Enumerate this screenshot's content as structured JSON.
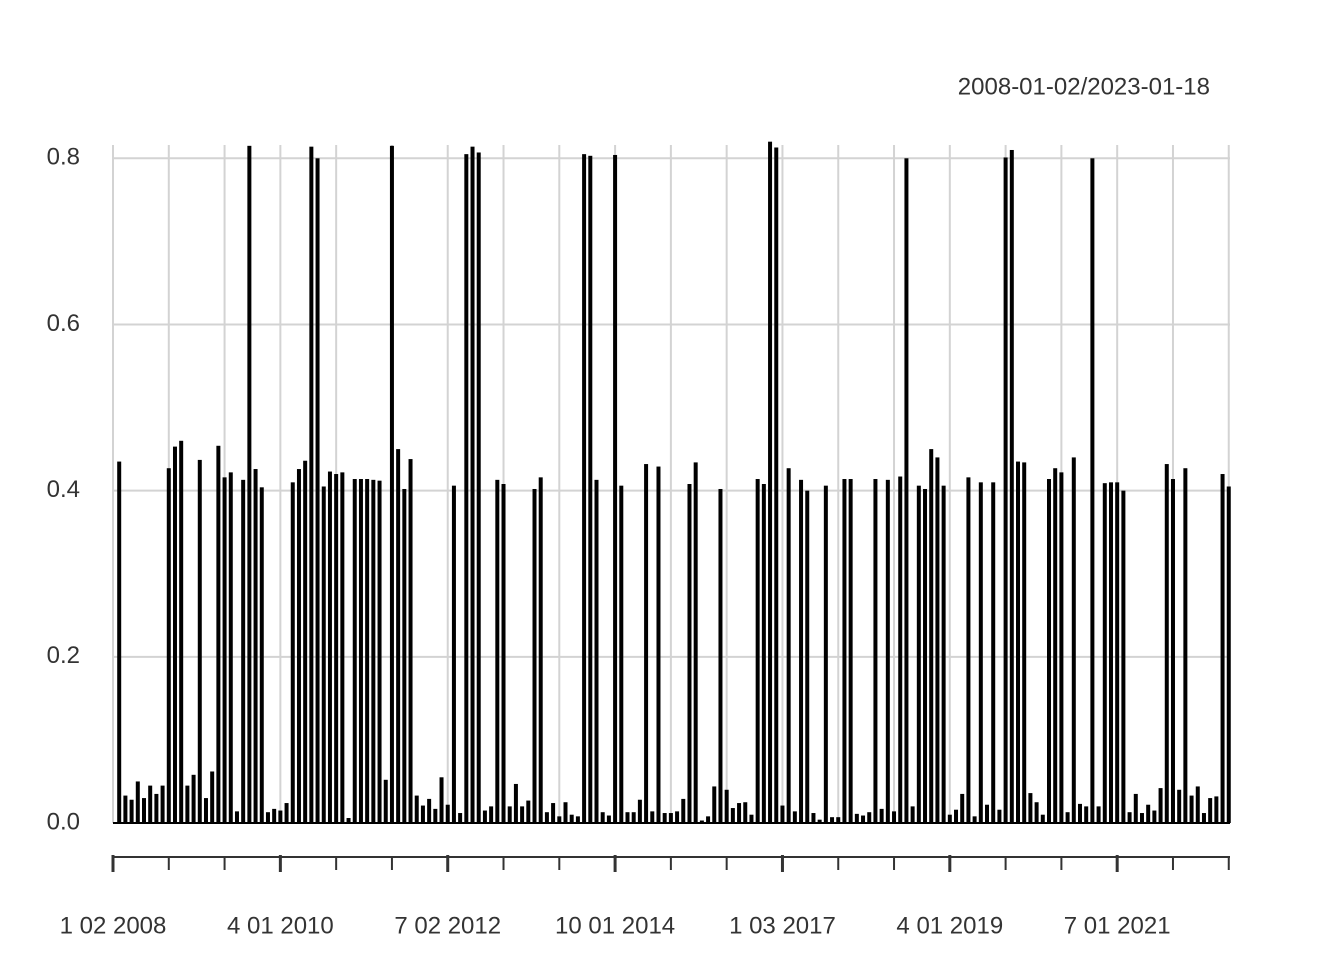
{
  "chart_data": {
    "type": "bar",
    "title": "2008-01-02/2023-01-18",
    "color": "#000000",
    "grid": true,
    "values": [
      0.435,
      0.033,
      0.028,
      0.05,
      0.03,
      0.045,
      0.035,
      0.045,
      0.427,
      0.453,
      0.46,
      0.045,
      0.058,
      0.437,
      0.03,
      0.062,
      0.454,
      0.416,
      0.422,
      0.014,
      0.413,
      0.815,
      0.426,
      0.404,
      0.013,
      0.017,
      0.015,
      0.024,
      0.41,
      0.426,
      0.436,
      0.814,
      0.8,
      0.405,
      0.423,
      0.42,
      0.422,
      0.006,
      0.414,
      0.414,
      0.414,
      0.413,
      0.412,
      0.052,
      0.815,
      0.45,
      0.402,
      0.438,
      0.033,
      0.021,
      0.029,
      0.017,
      0.055,
      0.022,
      0.406,
      0.012,
      0.805,
      0.814,
      0.807,
      0.015,
      0.02,
      0.413,
      0.408,
      0.02,
      0.047,
      0.02,
      0.027,
      0.402,
      0.416,
      0.013,
      0.024,
      0.008,
      0.025,
      0.01,
      0.008,
      0.805,
      0.803,
      0.413,
      0.013,
      0.009,
      0.804,
      0.406,
      0.013,
      0.013,
      0.028,
      0.432,
      0.014,
      0.429,
      0.012,
      0.012,
      0.014,
      0.029,
      0.408,
      0.434,
      0.003,
      0.008,
      0.044,
      0.402,
      0.04,
      0.018,
      0.024,
      0.025,
      0.01,
      0.414,
      0.408,
      0.82,
      0.813,
      0.021,
      0.427,
      0.014,
      0.413,
      0.4,
      0.012,
      0.004,
      0.406,
      0.007,
      0.007,
      0.414,
      0.414,
      0.011,
      0.009,
      0.013,
      0.414,
      0.017,
      0.413,
      0.014,
      0.417,
      0.8,
      0.02,
      0.406,
      0.402,
      0.45,
      0.44,
      0.406,
      0.01,
      0.016,
      0.035,
      0.416,
      0.008,
      0.41,
      0.022,
      0.41,
      0.016,
      0.801,
      0.81,
      0.435,
      0.434,
      0.036,
      0.025,
      0.01,
      0.414,
      0.427,
      0.422,
      0.013,
      0.44,
      0.023,
      0.02,
      0.8,
      0.02,
      0.409,
      0.41,
      0.41,
      0.4,
      0.013,
      0.035,
      0.012,
      0.022,
      0.015,
      0.042,
      0.432,
      0.414,
      0.04,
      0.427,
      0.033,
      0.044,
      0.012,
      0.03,
      0.032,
      0.42,
      0.405
    ],
    "xlim": [
      -1,
      179.2
    ],
    "xticks": [
      {
        "value": -1,
        "label": "1 02 2008"
      },
      {
        "value": 26,
        "label": "4 01 2010"
      },
      {
        "value": 53,
        "label": "7 02 2012"
      },
      {
        "value": 80,
        "label": "10 01 2014"
      },
      {
        "value": 107,
        "label": "1 03 2017"
      },
      {
        "value": 134,
        "label": "4 01 2019"
      },
      {
        "value": 161,
        "label": "7 01 2021"
      }
    ],
    "xgrid": [
      -1,
      8,
      17,
      26,
      35,
      44,
      53,
      62,
      71,
      80,
      89,
      98,
      107,
      116,
      125,
      134,
      143,
      152,
      161,
      170,
      179
    ],
    "ylim": [
      0,
      0.816
    ],
    "yticks": [
      {
        "value": 0,
        "label": "0.0"
      },
      0.2,
      0.4,
      0.6,
      0.8
    ]
  }
}
